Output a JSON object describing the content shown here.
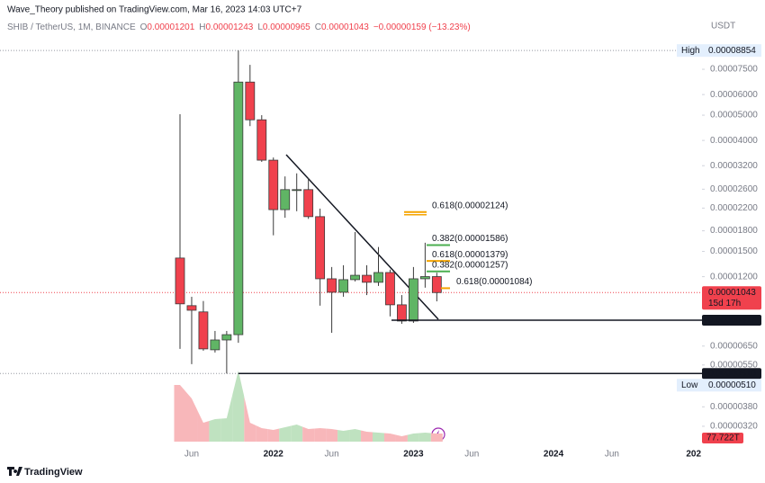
{
  "publisher_line": "Wave_Theory published on TradingView.com, Mar 16, 2023 14:03 UTC+7",
  "brand": "TradingView",
  "chart_data": {
    "type": "candlestick",
    "title": "SHIB / TetherUS, 1M, BINANCE",
    "ohlc_letters": [
      "O",
      "H",
      "L",
      "C"
    ],
    "change": "−0.00000159 (−13.23%)",
    "currency": "USDT",
    "categories": [
      null,
      "Jun",
      null,
      null,
      null,
      null,
      null,
      null,
      "2022",
      null,
      null,
      null,
      null,
      "Jun",
      null,
      null,
      null,
      null,
      null,
      null,
      "2023",
      null,
      null,
      null,
      null,
      "Jun",
      null,
      null,
      null,
      null,
      null,
      null,
      "2024",
      null,
      null,
      null,
      null,
      "Jun",
      null,
      null,
      null,
      null,
      null,
      null,
      "202"
    ],
    "open": [
      1.415e-05,
      9.29e-06,
      8.79e-06,
      6.29e-06,
      6.86e-06,
      7.19e-06,
      6.7e-05,
      4.8e-05,
      3.36e-05,
      2.17e-05,
      2.57e-05,
      2.59e-05,
      2.04e-05,
      1.178e-05,
      1.046e-05,
      1.169e-05,
      1.215e-05,
      1.142e-05,
      1.245e-05,
      9.36e-06,
      8.11e-06,
      1.178e-05,
      1.201e-05,
      null,
      null,
      null,
      null,
      null,
      null,
      null,
      null,
      null,
      null,
      null,
      null,
      null,
      null,
      null,
      null,
      null,
      null,
      null,
      null,
      null,
      null
    ],
    "high": [
      5.04e-05,
      1.005e-05,
      9.68e-06,
      7.43e-06,
      7.43e-06,
      8.854e-05,
      7.8e-05,
      5e-05,
      3.44e-05,
      2.91e-05,
      2.99e-05,
      2.87e-05,
      2.19e-05,
      1.307e-05,
      1.328e-05,
      1.78e-05,
      1.328e-05,
      1.56e-05,
      1.277e-05,
      1.02e-05,
      1.307e-05,
      1.62e-05,
      1.243e-05,
      null,
      null,
      null,
      null,
      null,
      null,
      null,
      null,
      null,
      null,
      null,
      null,
      null,
      null,
      null,
      null,
      null,
      null,
      null,
      null,
      null,
      null
    ],
    "low": [
      6.34e-06,
      5.54e-06,
      6.24e-06,
      6.14e-06,
      5.1e-06,
      6.69e-06,
      4.54e-05,
      3.31e-05,
      1.73e-05,
      2.02e-05,
      2.14e-05,
      2e-05,
      9.29e-06,
      7.31e-06,
      1.005e-05,
      1.151e-05,
      1.02e-05,
      1.106e-05,
      8.45e-06,
      7.91e-06,
      7.98e-06,
      1.089e-05,
      9.65e-06,
      null,
      null,
      null,
      null,
      null,
      null,
      null,
      null,
      null,
      null,
      null,
      null,
      null,
      null,
      null,
      null,
      null,
      null,
      null,
      null,
      null,
      null
    ],
    "close": [
      9.44e-06,
      8.92e-06,
      6.34e-06,
      6.86e-06,
      7.19e-06,
      6.7e-05,
      4.8e-05,
      3.36e-05,
      2.17e-05,
      2.59e-05,
      2.59e-05,
      2.04e-05,
      1.178e-05,
      1.046e-05,
      1.169e-05,
      1.215e-05,
      1.142e-05,
      1.245e-05,
      9.36e-06,
      8.11e-06,
      1.178e-05,
      1.201e-05,
      1.043e-05,
      null,
      null,
      null,
      null,
      null,
      null,
      null,
      null,
      null,
      null,
      null,
      null,
      null,
      null,
      null,
      null,
      null,
      null,
      null,
      null,
      null,
      null
    ],
    "volume": [
      63,
      48,
      21,
      25,
      26,
      79,
      21,
      15,
      13,
      16,
      19,
      14,
      15,
      14,
      12,
      14,
      11,
      10,
      9,
      6,
      9,
      10,
      9,
      null,
      null,
      null,
      null,
      null,
      null,
      null,
      null,
      null,
      null,
      null,
      null,
      null,
      null,
      null,
      null,
      null,
      null,
      null,
      null,
      null,
      null
    ],
    "volume_label": "77.722T",
    "countdown": "15d 17h",
    "up_color": "#60b565",
    "down_color": "#f0414d",
    "volume_up_color": "#bfe2c0",
    "volume_down_color": "#f8b7ba",
    "log_scale": true,
    "ylim": [
      2.75e-06,
      0.000109
    ],
    "yticks": [
      {
        "value": 7.5e-05,
        "label": "0.00007500"
      },
      {
        "value": 6e-05,
        "label": "0.00006000"
      },
      {
        "value": 5e-05,
        "label": "0.00005000"
      },
      {
        "value": 4e-05,
        "label": "0.00004000"
      },
      {
        "value": 3.2e-05,
        "label": "0.00003200"
      },
      {
        "value": 2.6e-05,
        "label": "0.00002600"
      },
      {
        "value": 2.2e-05,
        "label": "0.00002200"
      },
      {
        "value": 1.8e-05,
        "label": "0.00001800"
      },
      {
        "value": 1.5e-05,
        "label": "0.00001500"
      },
      {
        "value": 1.2e-05,
        "label": "0.00001200"
      },
      {
        "value": 6.5e-06,
        "label": "0.00000650"
      },
      {
        "value": 5.5e-06,
        "label": "0.00000550"
      },
      {
        "value": 3.8e-06,
        "label": "0.00000380"
      },
      {
        "value": 3.2e-06,
        "label": "0.00000320"
      }
    ],
    "high_marker": {
      "label": "High",
      "value": 8.854e-05
    },
    "low_marker": {
      "label": "Low",
      "value": {
        "value": 5.1e-06,
        "label": "0.00000510"
      }
    },
    "levels": [
      {
        "value": 8.17e-06
      },
      {
        "value": {
          "value": 5.1e-06,
          "label": "0.00000510"
        }
      }
    ],
    "fib_levels": [
      {
        "label": "0.618(0.00002124)",
        "value": 2.124e-05,
        "color": "#f5a400"
      },
      {
        "label": "0.382(0.00001586)",
        "value": 1.586e-05,
        "color": "#4caf50"
      },
      {
        "label": "0.618(0.00001379)",
        "value": 1.379e-05,
        "color": "#f5a400"
      },
      {
        "label": "0.382(0.00001257)",
        "value": 1.257e-05,
        "color": "#4caf50"
      },
      {
        "label": "0.618(0.00001084)",
        "value": 1.084e-05,
        "color": "#f5a400"
      }
    ]
  }
}
